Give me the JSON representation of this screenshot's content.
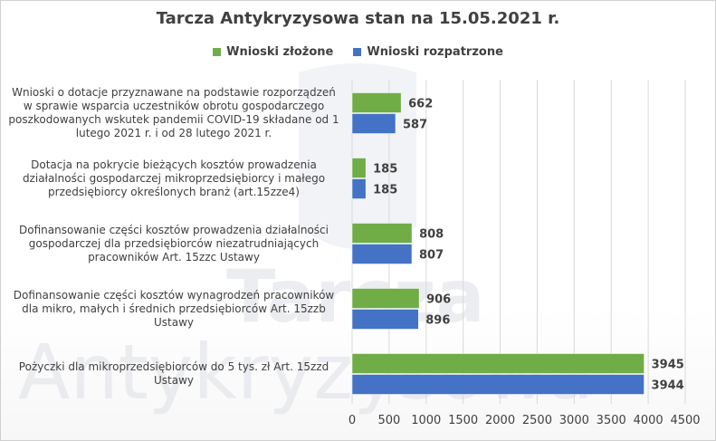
{
  "chart_data": {
    "type": "bar",
    "orientation": "horizontal",
    "title": "Tarcza Antykryzysowa  stan na 15.05.2021 r.",
    "categories": [
      "Wnioski o dotacje przyznawane na podstawie rozporządzeń w sprawie wsparcia uczestników obrotu gospodarczego poszkodowanych wskutek pandemii COVID-19 składane od 1 lutego 2021 r. i od 28 lutego 2021 r.",
      "Dotacja na pokrycie bieżących kosztów prowadzenia działalności gospodarczej mikroprzedsiębiorcy i małego przedsiębiorcy określonych branż (art.15zze4)",
      "Dofinansowanie części kosztów prowadzenia działalności gospodarczej dla przedsiębiorców niezatrudniających pracowników Art. 15zzc Ustawy",
      "Dofinansowanie części kosztów wynagrodzeń pracowników dla mikro, małych i średnich przedsiębiorców Art. 15zzb Ustawy",
      "Pożyczki dla mikroprzedsiębiorców do 5 tys. zł Art. 15zzd Ustawy"
    ],
    "series": [
      {
        "name": "Wnioski złożone",
        "color": "#70ad47",
        "values": [
          662,
          185,
          808,
          906,
          3945
        ]
      },
      {
        "name": "Wnioski rozpatrzone",
        "color": "#4472c4",
        "values": [
          587,
          185,
          807,
          896,
          3944
        ]
      }
    ],
    "xlim": [
      0,
      4500
    ],
    "xticks": [
      0,
      500,
      1000,
      1500,
      2000,
      2500,
      3000,
      3500,
      4000,
      4500
    ],
    "xtick_labels": [
      "0",
      "500",
      "1000",
      "1500",
      "2000",
      "2500",
      "3000",
      "3500",
      "4000",
      "4500"
    ],
    "grid": "vertical",
    "legend_position": "top"
  },
  "watermark": {
    "line1": "Tarcza",
    "line2": "Antykryzysowa"
  }
}
